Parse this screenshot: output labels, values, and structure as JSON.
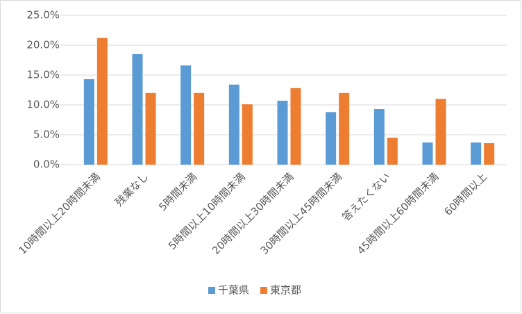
{
  "chart_data": {
    "type": "bar",
    "categories": [
      "10時間以上20時間未満",
      "残業なし",
      "5時間未満",
      "5時間以上10時間未満",
      "20時間以上30時間未満",
      "30時間以上45時間未満",
      "答えたくない",
      "45時間以上60時間未満",
      "60時間以上"
    ],
    "series": [
      {
        "name": "千葉県",
        "color": "#5b9bd5",
        "values": [
          14.3,
          18.5,
          16.6,
          13.4,
          10.7,
          8.8,
          9.3,
          3.7,
          3.7
        ]
      },
      {
        "name": "東京都",
        "color": "#ed7d31",
        "values": [
          21.2,
          12.0,
          12.0,
          10.1,
          12.8,
          12.0,
          4.5,
          11.0,
          3.6
        ]
      }
    ],
    "ylim": [
      0,
      25
    ],
    "yticks": [
      {
        "value": 0,
        "label": "0.0%"
      },
      {
        "value": 5,
        "label": "5.0%"
      },
      {
        "value": 10,
        "label": "10.0%"
      },
      {
        "value": 15,
        "label": "15.0%"
      },
      {
        "value": 20,
        "label": "20.0%"
      },
      {
        "value": 25,
        "label": "25.0%"
      }
    ],
    "grid": true,
    "legend": "bottom"
  }
}
